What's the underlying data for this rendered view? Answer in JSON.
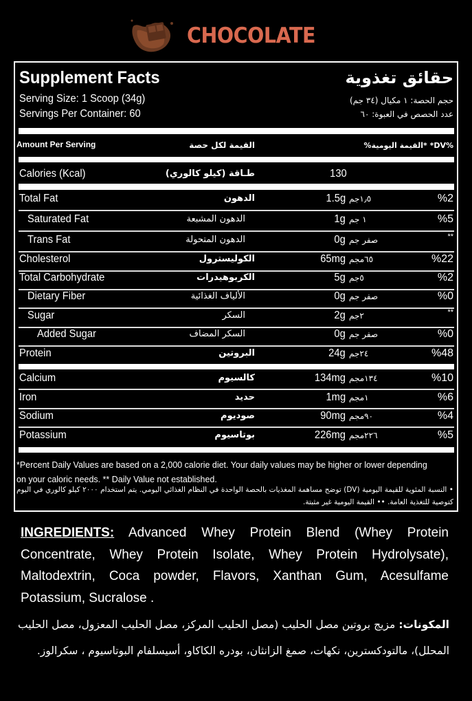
{
  "flavor": {
    "title": "CHOCOLATE",
    "icon": "chocolate-splash-icon",
    "color": "#d9694f"
  },
  "header": {
    "title_en": "Supplement Facts",
    "title_ar": "حقائق تغذوية",
    "serving_size_en": "Serving Size: 1 Scoop (34g)",
    "servings_per_container_en": "Servings Per Container: 60",
    "serving_size_ar": "حجم الحصة: ١ مكيال (٣٤ جم)",
    "servings_per_container_ar": "عدد الحصص في العبوة: ٦٠"
  },
  "columns": {
    "amount_en": "Amount Per Serving",
    "amount_ar": "القيمة لكل حصة",
    "dv": "%القيمة اليومية* *DV%"
  },
  "calories": {
    "name": "Calories (Kcal)",
    "name_ar": "طـاقة (كيلو كالوري)",
    "value": "130"
  },
  "nutrients": [
    {
      "name": "Total Fat",
      "name_ar": "الدهون",
      "amount": "1.5g",
      "amount_ar": "١٫٥جم",
      "dv": "%2"
    },
    {
      "name": "Saturated Fat",
      "name_ar": "الدهون المشبعة",
      "amount": "1g",
      "amount_ar": "١ جم",
      "dv": "%5"
    },
    {
      "name": "Trans Fat",
      "name_ar": "الدهون المتحولة",
      "amount": "0g",
      "amount_ar": "صفر جم",
      "dv": "**"
    },
    {
      "name": "Cholesterol",
      "name_ar": "الكوليسترول",
      "amount": "65mg",
      "amount_ar": "٦٥مجم",
      "dv": "%22"
    },
    {
      "name": "Total Carbohydrate",
      "name_ar": "الكربوهيدرات",
      "amount": "5g",
      "amount_ar": "٥جم",
      "dv": "%2"
    },
    {
      "name": "Dietary Fiber",
      "name_ar": "الألياف الغذائية",
      "amount": "0g",
      "amount_ar": "صفر جم",
      "dv": "%0"
    },
    {
      "name": "Sugar",
      "name_ar": "السكر",
      "amount": "2g",
      "amount_ar": "٢جم",
      "dv": "**"
    },
    {
      "name": "Added Sugar",
      "name_ar": "السكر المضاف",
      "amount": "0g",
      "amount_ar": "صفر جم",
      "dv": "%0"
    },
    {
      "name": "Protein",
      "name_ar": "البروتين",
      "amount": "24g",
      "amount_ar": "٢٤جم",
      "dv": "%48"
    },
    {
      "name": "Calcium",
      "name_ar": "كالسيوم",
      "amount": "134mg",
      "amount_ar": "١٣٤مجم",
      "dv": "%10"
    },
    {
      "name": "Iron",
      "name_ar": "حديد",
      "amount": "1mg",
      "amount_ar": "١مجم",
      "dv": "%6"
    },
    {
      "name": "Sodium",
      "name_ar": "صوديوم",
      "amount": "90mg",
      "amount_ar": "٩٠مجم",
      "dv": "%4"
    },
    {
      "name": "Potassium",
      "name_ar": "بوتاسيوم",
      "amount": "226mg",
      "amount_ar": "٢٢٦مجم",
      "dv": "%5"
    }
  ],
  "footnote_en": "*Percent Daily Values are based on a 2,000 calorie diet. Your daily values may be higher or lower depending on your caloric needs. ** Daily Value not established.",
  "footnote_ar": "• النسبة المئوية للقيمة اليومية (DV) توضح مساهمة المغذيات بالحصة الواحدة في النظام الغذائي اليومي. يتم استخدام ٢٠٠٠ كيلو كالوري في اليوم كتوصية للتغذية العامة. •• القيمة اليومية غير مثبتة.",
  "ingredients": {
    "label": "INGREDIENTS:",
    "text": " Advanced Whey Protein Blend (Whey Protein Concentrate, Whey Protein Isolate, Whey Protein Hydrolysate), Maltodextrin, Coca powder, Flavors, Xanthan Gum, Acesulfame Potassium, Sucralose .",
    "label_ar": "المكونات:",
    "text_ar": " مزيج بروتين مصل الحليب (مصل الحليب المركز، مصل الحليب المعزول، مصل الحليب المحلل)، مالتودكسترين، نكهات، صمغ الزانثان، بودره الكاكاو، أسيسلفام البوتاسيوم ، سكرالوز."
  }
}
